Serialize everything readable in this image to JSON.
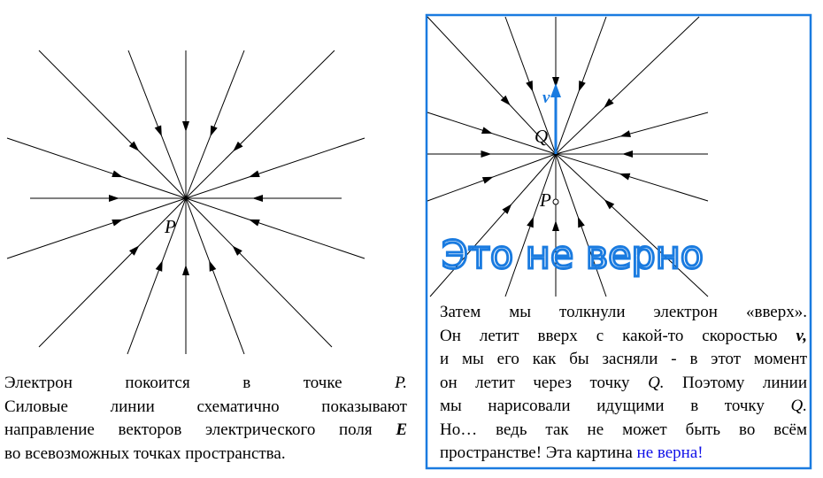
{
  "left_diagram": {
    "point_label": "P"
  },
  "right_diagram": {
    "point_q_label": "Q",
    "point_p_label": "P",
    "velocity_label": "v",
    "wrong_stamp": "Это не верно"
  },
  "left_caption": {
    "line1_text": "Электрон покоится в точке",
    "line1_point": "P.",
    "line2": "Силовые линии схематично показывают",
    "line3_text": "направление векторов электрического поля",
    "line3_vector": "E",
    "line4": "во всевозможных точках пространства."
  },
  "right_caption": {
    "line1": "Затем мы толкнули электрон «вверх».",
    "line2_text": "Он летит вверх с какой-то скоростью",
    "line2_vector": "v,",
    "line3": "и мы его как бы засняли - в этот момент",
    "line4_text": "он летит через точку",
    "line4_point": "Q.",
    "line4_tail": "Поэтому линии",
    "line5_text": "мы нарисовали идущими в точку",
    "line5_point": "Q.",
    "line6": "Но… ведь так не может быть во всём",
    "line7_text": "пространстве! Эта картина",
    "line7_highlight": "не верна!"
  },
  "colors": {
    "frame": "#1a7be0",
    "stamp": "#1a7be0",
    "velocity_arrow": "#1a7be0",
    "highlight_text": "#1010e8",
    "field_lines": "#000000"
  }
}
